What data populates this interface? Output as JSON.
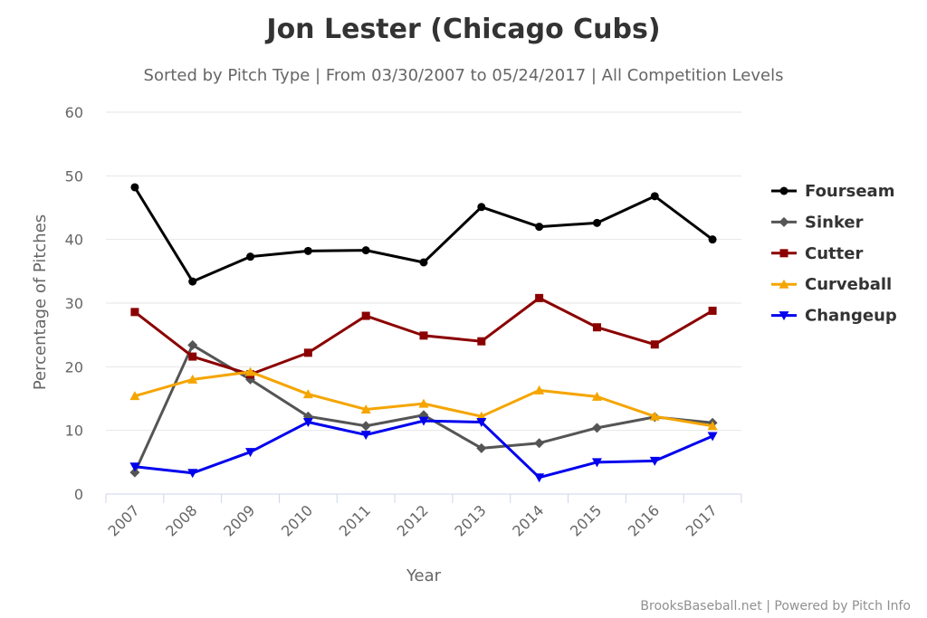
{
  "chart_data": {
    "type": "line",
    "title": "Jon Lester (Chicago Cubs)",
    "subtitle": "Sorted by Pitch Type | From 03/30/2007 to 05/24/2017 | All Competition Levels",
    "xlabel": "Year",
    "ylabel": "Percentage of Pitches",
    "categories": [
      "2007",
      "2008",
      "2009",
      "2010",
      "2011",
      "2012",
      "2013",
      "2014",
      "2015",
      "2016",
      "2017"
    ],
    "ylim": [
      0,
      60
    ],
    "yticks": [
      "0",
      "10",
      "20",
      "30",
      "40",
      "50",
      "60"
    ],
    "grid": true,
    "legend_position": "right",
    "series": [
      {
        "name": "Fourseam",
        "color": "#000000",
        "marker": "circle",
        "values": [
          48.2,
          33.4,
          37.3,
          38.2,
          38.3,
          36.4,
          45.1,
          42.0,
          42.6,
          46.8,
          40.0
        ]
      },
      {
        "name": "Sinker",
        "color": "#555555",
        "marker": "diamond",
        "values": [
          3.4,
          23.4,
          18.0,
          12.2,
          10.7,
          12.4,
          7.2,
          8.0,
          10.4,
          12.1,
          11.2
        ]
      },
      {
        "name": "Cutter",
        "color": "#8b0000",
        "marker": "square",
        "values": [
          28.6,
          21.6,
          18.8,
          22.2,
          28.0,
          24.9,
          24.0,
          30.8,
          26.2,
          23.5,
          28.8
        ]
      },
      {
        "name": "Curveball",
        "color": "#f5a500",
        "marker": "triangle",
        "values": [
          15.4,
          18.0,
          19.2,
          15.7,
          13.3,
          14.2,
          12.2,
          16.3,
          15.3,
          12.2,
          10.7
        ]
      },
      {
        "name": "Changeup",
        "color": "#0000ee",
        "marker": "triangle-down",
        "values": [
          4.3,
          3.3,
          6.6,
          11.3,
          9.3,
          11.5,
          11.3,
          2.6,
          5.0,
          5.2,
          9.1
        ]
      }
    ]
  },
  "credit": "BrooksBaseball.net | Powered by Pitch Info"
}
